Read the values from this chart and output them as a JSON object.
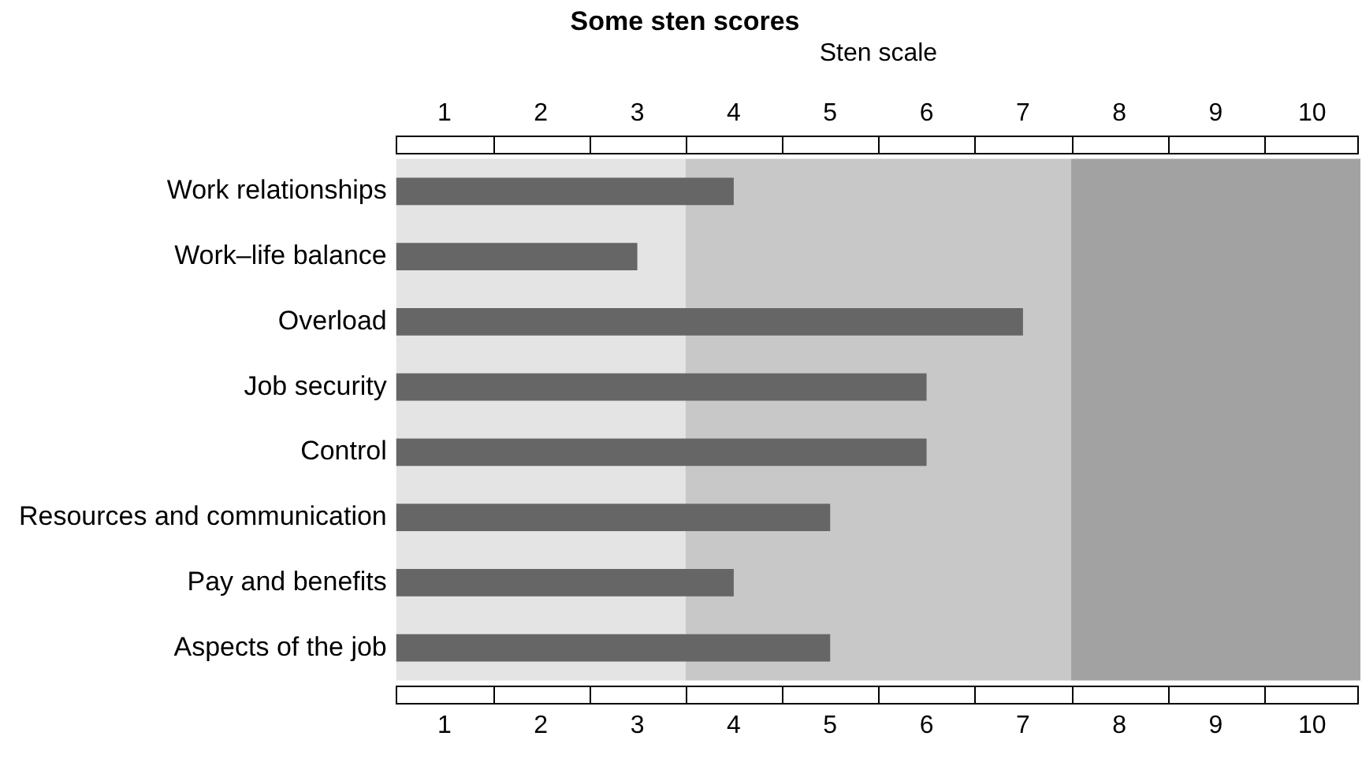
{
  "chart_data": {
    "type": "bar",
    "orientation": "horizontal",
    "title": "Some sten scores",
    "x2label": "Sten scale",
    "categories": [
      "Work relationships",
      "Work–life balance",
      "Overload",
      "Job security",
      "Control",
      "Resources and communication",
      "Pay and benefits",
      "Aspects of the job"
    ],
    "values": [
      4,
      3,
      7,
      6,
      6,
      5,
      4,
      5
    ],
    "color": "#666666",
    "xlim": [
      0.5,
      10.5
    ],
    "xticks": [
      1,
      2,
      3,
      4,
      5,
      6,
      7,
      8,
      9,
      10
    ],
    "x2lim": [
      0.5,
      10.5
    ],
    "x2ticks": [
      1,
      2,
      3,
      4,
      5,
      6,
      7,
      8,
      9,
      10
    ],
    "bands": [
      {
        "axis": "x",
        "from": 0.5,
        "to": 3.5,
        "color": "#e4e4e4"
      },
      {
        "axis": "x",
        "from": 3.5,
        "to": 7.5,
        "color": "#c8c8c8"
      },
      {
        "axis": "x",
        "from": 7.5,
        "to": 10.5,
        "color": "#a2a2a2"
      }
    ],
    "grid": false,
    "legend": false
  }
}
